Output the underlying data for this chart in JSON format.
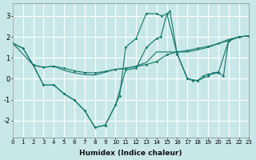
{
  "bg_color": "#c8e8e8",
  "grid_color": "#ffffff",
  "line_color": "#1a7a6e",
  "xlabel": "Humidex (Indice chaleur)",
  "xlim": [
    0,
    23
  ],
  "ylim": [
    -2.8,
    3.6
  ],
  "yticks": [
    -2,
    -1,
    0,
    1,
    2,
    3
  ],
  "xtick_labels": [
    "0",
    "1",
    "2",
    "3",
    "4",
    "5",
    "6",
    "7",
    "8",
    "9",
    "10",
    "11",
    "12",
    "13",
    "14",
    "15",
    "16",
    "17",
    "18",
    "19",
    "20",
    "21",
    "22",
    "23"
  ],
  "line_A_x": [
    0,
    1,
    2,
    3,
    4,
    5,
    6,
    7,
    8,
    9,
    10,
    11,
    12,
    13,
    14,
    15,
    16,
    17,
    18,
    19,
    20,
    21,
    22,
    23
  ],
  "line_A_y": [
    1.7,
    1.45,
    0.65,
    0.55,
    0.6,
    0.5,
    0.38,
    0.3,
    0.28,
    0.35,
    0.45,
    0.5,
    0.58,
    0.68,
    0.82,
    1.15,
    1.28,
    1.35,
    1.45,
    1.55,
    1.68,
    1.82,
    2.0,
    2.05
  ],
  "line_B_x": [
    0,
    1,
    2,
    3,
    4,
    5,
    6,
    7,
    8,
    9,
    10,
    11,
    12,
    13,
    14,
    15,
    16,
    17,
    18,
    19,
    20,
    21,
    22,
    23
  ],
  "line_B_y": [
    1.7,
    1.45,
    0.65,
    0.55,
    0.6,
    0.4,
    0.28,
    0.2,
    0.18,
    0.32,
    0.45,
    0.5,
    0.6,
    0.78,
    1.28,
    1.28,
    1.28,
    1.28,
    1.38,
    1.5,
    1.68,
    1.88,
    2.0,
    2.05
  ],
  "line_C_x": [
    0,
    2,
    3,
    4,
    5,
    6,
    7,
    8,
    9,
    10,
    11,
    12,
    13,
    14,
    14.4,
    15,
    15.3,
    16,
    17,
    18,
    18.5,
    19,
    20,
    21,
    22,
    23
  ],
  "line_C_y": [
    1.7,
    0.65,
    -0.3,
    -0.3,
    -0.72,
    -1.02,
    -1.52,
    -2.32,
    -2.22,
    -1.25,
    0.42,
    0.5,
    1.5,
    1.92,
    2.0,
    3.1,
    3.22,
    1.2,
    0.0,
    -0.08,
    0.12,
    0.22,
    0.28,
    1.8,
    2.0,
    2.05
  ],
  "line_D_x": [
    2,
    3,
    4,
    5,
    6,
    7,
    8,
    9,
    10,
    10.4,
    11,
    12,
    13,
    14,
    14.5,
    15,
    16,
    17,
    17.5,
    18,
    19,
    19.5,
    20,
    20.5,
    21,
    22,
    23
  ],
  "line_D_y": [
    0.65,
    -0.3,
    -0.3,
    -0.72,
    -1.02,
    -1.52,
    -2.32,
    -2.22,
    -1.25,
    -0.82,
    1.52,
    1.92,
    3.12,
    3.1,
    3.0,
    3.1,
    1.18,
    0.0,
    -0.08,
    -0.08,
    0.12,
    0.28,
    0.32,
    0.12,
    1.82,
    2.0,
    2.05
  ]
}
